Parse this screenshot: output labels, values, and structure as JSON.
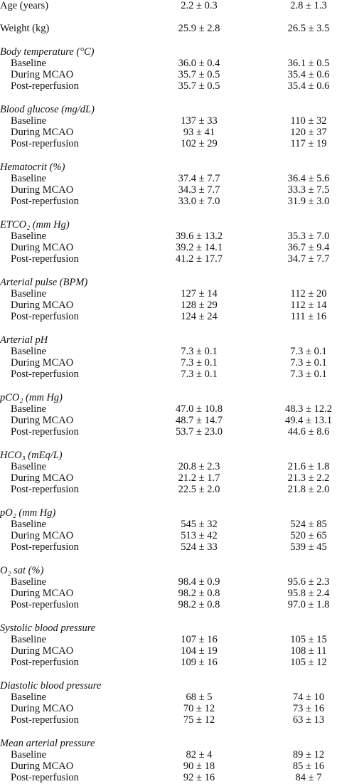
{
  "rows": [
    {
      "label": "Age (years)",
      "values": [
        "2.2 ± 0.3",
        "2.8 ± 1.3"
      ]
    },
    {
      "label": "Weight (kg)",
      "values": [
        "25.9 ± 2.8",
        "26.5 ± 3.5"
      ]
    }
  ],
  "groups": [
    {
      "heading": "Body temperature (°C)",
      "rows": [
        {
          "label": "Baseline",
          "values": [
            "36.0 ± 0.4",
            "36.1 ± 0.5"
          ]
        },
        {
          "label": "During MCAO",
          "values": [
            "35.7 ± 0.5",
            "35.4 ± 0.6"
          ]
        },
        {
          "label": "Post-reperfusion",
          "values": [
            "35.7 ± 0.5",
            "35.4 ± 0.6"
          ]
        }
      ]
    },
    {
      "heading": "Blood glucose (mg/dL)",
      "rows": [
        {
          "label": "Baseline",
          "values": [
            "137 ± 33",
            "110 ± 32"
          ]
        },
        {
          "label": "During MCAO",
          "values": [
            "93 ± 41",
            "120 ± 37"
          ]
        },
        {
          "label": "Post-reperfusion",
          "values": [
            "102 ± 29",
            "117 ± 19"
          ]
        }
      ]
    },
    {
      "heading": "Hematocrit (%)",
      "rows": [
        {
          "label": "Baseline",
          "values": [
            "37.4 ± 7.7",
            "36.4 ± 5.6"
          ]
        },
        {
          "label": "During MCAO",
          "values": [
            "34.3 ± 7.7",
            "33.3 ± 7.5"
          ]
        },
        {
          "label": "Post-reperfusion",
          "values": [
            "33.0 ± 7.0",
            "31.9 ± 3.0"
          ]
        }
      ]
    },
    {
      "heading": "ETCO₂ (mm Hg)",
      "rows": [
        {
          "label": "Baseline",
          "values": [
            "39.6 ± 13.2",
            "35.3 ± 7.0"
          ]
        },
        {
          "label": "During MCAO",
          "values": [
            "39.2 ± 14.1",
            "36.7 ± 9.4"
          ]
        },
        {
          "label": "Post-reperfusion",
          "values": [
            "41.2 ± 17.7",
            "34.7 ± 7.7"
          ]
        }
      ]
    },
    {
      "heading": "Arterial pulse (BPM)",
      "rows": [
        {
          "label": "Baseline",
          "values": [
            "127 ± 14",
            "112 ± 20"
          ]
        },
        {
          "label": "During MCAO",
          "values": [
            "128 ± 29",
            "112 ± 14"
          ]
        },
        {
          "label": "Post-reperfusion",
          "values": [
            "124 ± 24",
            "111 ± 16"
          ]
        }
      ]
    },
    {
      "heading": "Arterial pH",
      "rows": [
        {
          "label": "Baseline",
          "values": [
            "7.3 ± 0.1",
            "7.3 ± 0.1"
          ]
        },
        {
          "label": "During MCAO",
          "values": [
            "7.3 ± 0.1",
            "7.3 ± 0.1"
          ]
        },
        {
          "label": "Post-reperfusion",
          "values": [
            "7.3 ± 0.1",
            "7.3 ± 0.1"
          ]
        }
      ]
    },
    {
      "heading": "pCO₂ (mm Hg)",
      "rows": [
        {
          "label": "Baseline",
          "values": [
            "47.0 ± 10.8",
            "48.3 ± 12.2"
          ]
        },
        {
          "label": "During MCAO",
          "values": [
            "48.7 ± 14.7",
            "49.4 ± 13.1"
          ]
        },
        {
          "label": "Post-reperfusion",
          "values": [
            "53.7 ± 23.0",
            "44.6 ± 8.6"
          ]
        }
      ]
    },
    {
      "heading": "HCO₃ (mEq/L)",
      "rows": [
        {
          "label": "Baseline",
          "values": [
            "20.8 ± 2.3",
            "21.6 ± 1.8"
          ]
        },
        {
          "label": "During MCAO",
          "values": [
            "21.2 ± 1.7",
            "21.3 ± 2.2"
          ]
        },
        {
          "label": "Post-reperfusion",
          "values": [
            "22.5 ± 2.0",
            "21.8 ± 2.0"
          ]
        }
      ]
    },
    {
      "heading": "pO₂ (mm Hg)",
      "rows": [
        {
          "label": "Baseline",
          "values": [
            "545 ± 32",
            "524 ± 85"
          ]
        },
        {
          "label": "During MCAO",
          "values": [
            "513 ± 42",
            "520 ± 65"
          ]
        },
        {
          "label": "Post-reperfusion",
          "values": [
            "524 ± 33",
            "539 ± 45"
          ]
        }
      ]
    },
    {
      "heading": "O₂ sat (%)",
      "rows": [
        {
          "label": "Baseline",
          "values": [
            "98.4 ± 0.9",
            "95.6 ± 2.3"
          ]
        },
        {
          "label": "During MCAO",
          "values": [
            "98.2 ± 0.8",
            "95.8 ± 2.4"
          ]
        },
        {
          "label": "Post-reperfusion",
          "values": [
            "98.2 ± 0.8",
            "97.0 ± 1.8"
          ]
        }
      ]
    },
    {
      "heading": "Systolic blood pressure",
      "rows": [
        {
          "label": "Baseline",
          "values": [
            "107 ± 16",
            "105 ± 15"
          ]
        },
        {
          "label": "During MCAO",
          "values": [
            "104 ± 19",
            "108 ± 11"
          ]
        },
        {
          "label": "Post-reperfusion",
          "values": [
            "109 ± 16",
            "105 ± 12"
          ]
        }
      ]
    },
    {
      "heading": "Diastolic blood pressure",
      "rows": [
        {
          "label": "Baseline",
          "values": [
            "68 ± 5",
            "74 ± 10"
          ]
        },
        {
          "label": "During MCAO",
          "values": [
            "70 ± 12",
            "73 ± 16"
          ]
        },
        {
          "label": "Post-reperfusion",
          "values": [
            "75 ± 12",
            "63 ± 13"
          ]
        }
      ]
    },
    {
      "heading": "Mean arterial pressure",
      "rows": [
        {
          "label": "Baseline",
          "values": [
            "82 ± 4",
            "89 ± 12"
          ]
        },
        {
          "label": "During MCAO",
          "values": [
            "90 ± 18",
            "85 ± 16"
          ]
        },
        {
          "label": "Post-reperfusion",
          "values": [
            "92 ± 16",
            "84 ± 7"
          ]
        }
      ]
    }
  ]
}
